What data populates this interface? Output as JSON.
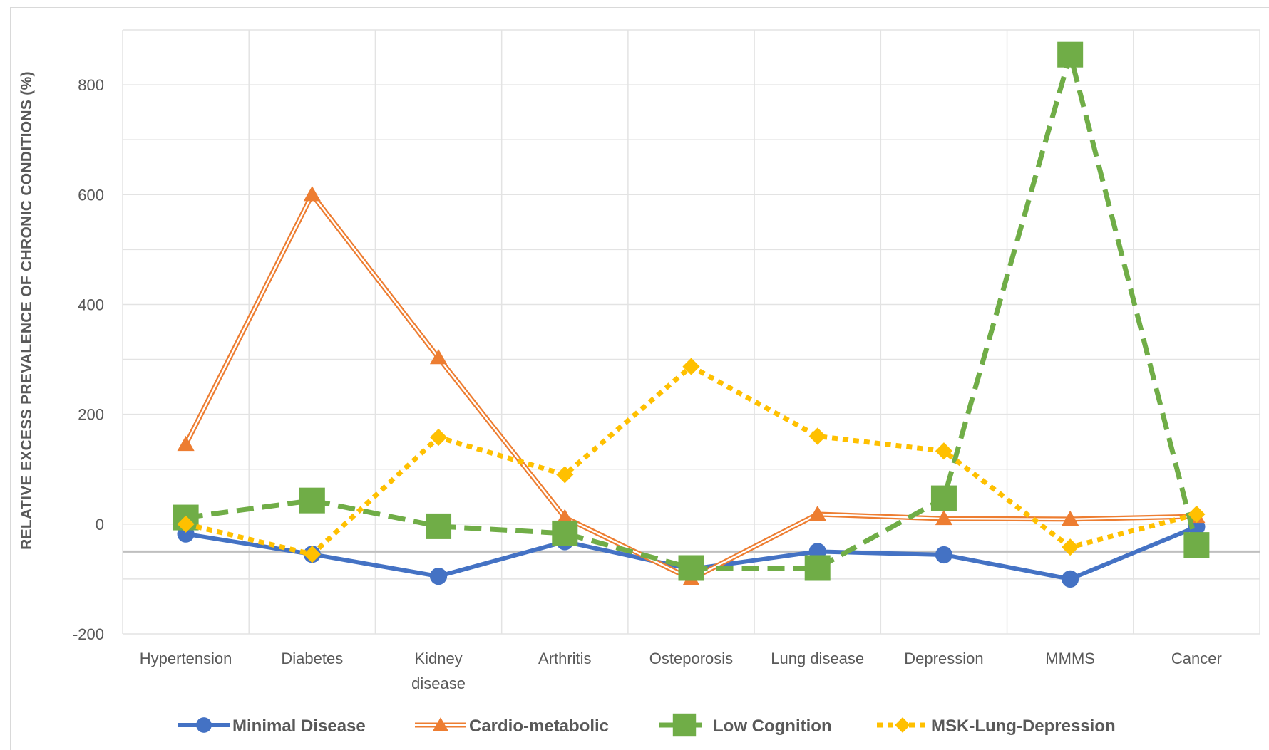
{
  "chart_data": {
    "type": "line",
    "title": "",
    "xlabel": "",
    "ylabel": "RELATIVE EXCESS PREVALENCE OF CHRONIC CONDITIONS (%)",
    "ylim": [
      -200,
      900
    ],
    "yticks": [
      -200,
      0,
      200,
      400,
      600,
      800
    ],
    "grid": true,
    "legend_position": "bottom",
    "categories": [
      [
        "Hypertension"
      ],
      [
        "Diabetes"
      ],
      [
        "Kidney",
        "disease"
      ],
      [
        "Arthritis"
      ],
      [
        "Osteporosis"
      ],
      [
        "Lung disease"
      ],
      [
        "Depression"
      ],
      [
        "MMMS"
      ],
      [
        "Cancer"
      ]
    ],
    "reference_line": -50,
    "series": [
      {
        "name": "Minimal Disease",
        "values": [
          -18,
          -55,
          -95,
          -32,
          -82,
          -50,
          -56,
          -100,
          -5
        ],
        "color": "#4472c4",
        "style": "solid-thick",
        "marker": "circle"
      },
      {
        "name": "Cardio-metabolic",
        "values": [
          145,
          600,
          303,
          12,
          -100,
          18,
          10,
          9,
          14
        ],
        "color": "#ed7d31",
        "style": "double",
        "marker": "triangle"
      },
      {
        "name": "Low Cognition",
        "values": [
          12,
          43,
          -4,
          -17,
          -80,
          -80,
          47,
          855,
          -38
        ],
        "color": "#70ad47",
        "style": "dashed",
        "marker": "square"
      },
      {
        "name": "MSK-Lung-Depression",
        "values": [
          0,
          -55,
          158,
          90,
          287,
          160,
          133,
          -42,
          18
        ],
        "color": "#ffc000",
        "style": "dotted",
        "marker": "diamond"
      }
    ]
  }
}
